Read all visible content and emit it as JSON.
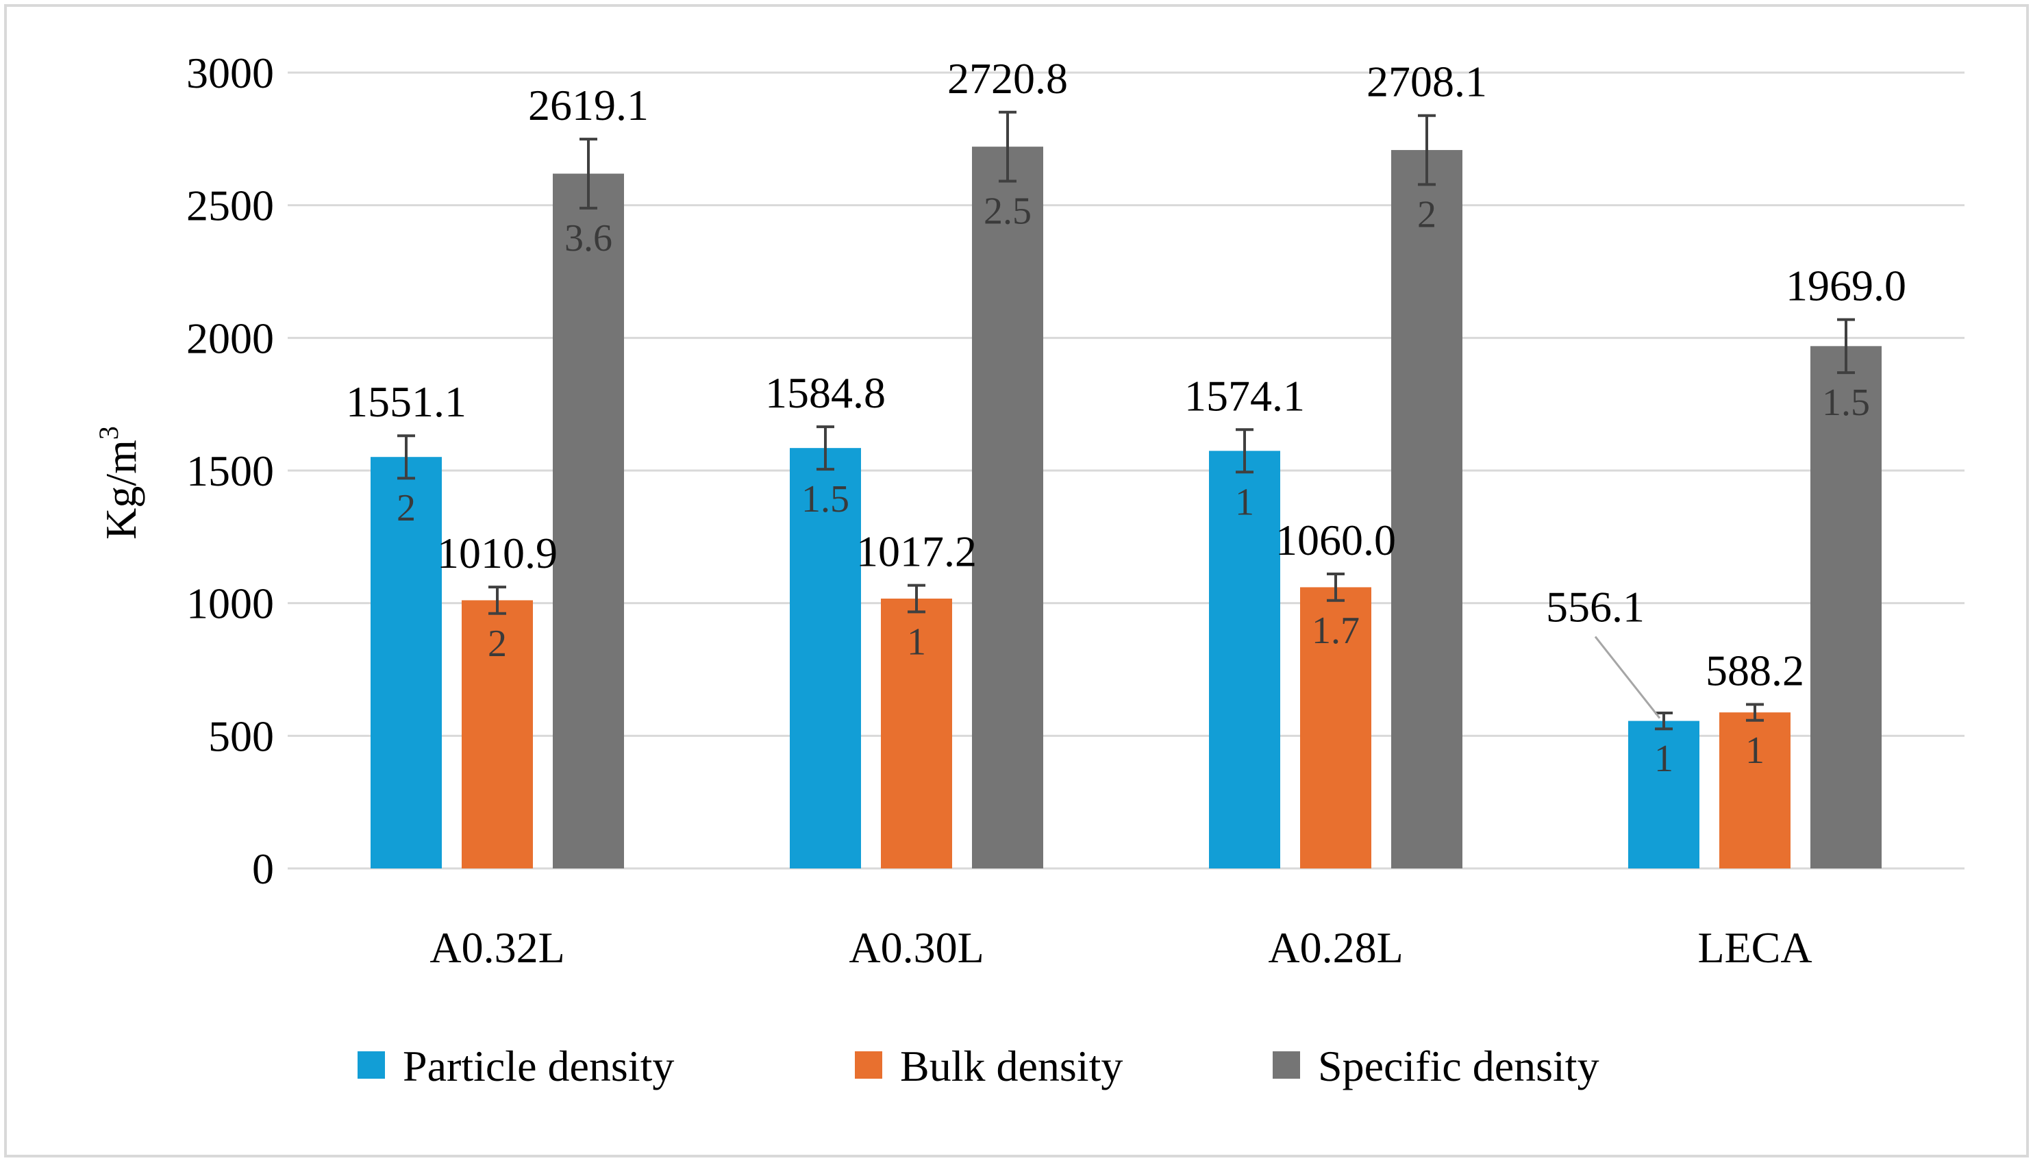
{
  "chart_data": {
    "type": "bar",
    "categories": [
      "A0.32L",
      "A0.30L",
      "A0.28L",
      "LECA"
    ],
    "ylabel": "Kg/m",
    "ylabel_superscript": "3",
    "ylim": [
      0,
      3000
    ],
    "yticks": [
      0,
      500,
      1000,
      1500,
      2000,
      2500,
      3000
    ],
    "grid": true,
    "legend_position": "bottom",
    "series": [
      {
        "name": "Particle density",
        "color": "#129ed6",
        "values": [
          1551.1,
          1584.8,
          1574.1,
          556.1
        ],
        "labels": [
          "1551.1",
          "1584.8",
          "1574.1",
          "556.1"
        ],
        "errors": [
          80,
          80,
          80,
          30
        ],
        "error_labels": [
          "2",
          "1.5",
          "1",
          "1"
        ]
      },
      {
        "name": "Bulk density",
        "color": "#e8702f",
        "values": [
          1010.9,
          1017.2,
          1060.0,
          588.2
        ],
        "labels": [
          "1010.9",
          "1017.2",
          "1060.0",
          "588.2"
        ],
        "errors": [
          50,
          50,
          50,
          30
        ],
        "error_labels": [
          "2",
          "1",
          "1.7",
          "1"
        ]
      },
      {
        "name": "Specific density",
        "color": "#757575",
        "values": [
          2619.1,
          2720.8,
          2708.1,
          1969.0
        ],
        "labels": [
          "2619.1",
          "2720.8",
          "2708.1",
          "1969.0"
        ],
        "errors": [
          130,
          130,
          130,
          100
        ],
        "error_labels": [
          "3.6",
          "2.5",
          "2",
          "1.5"
        ]
      }
    ]
  }
}
